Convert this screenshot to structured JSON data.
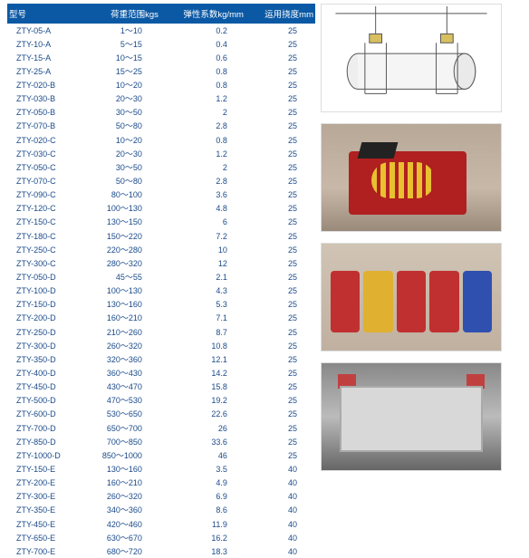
{
  "headers": [
    "型号",
    "荷重范围kgs",
    "弹性系数kg/mm",
    "运用挠度mm"
  ],
  "rows": [
    [
      "ZTY-05-A",
      "1～10",
      "0.2",
      "25"
    ],
    [
      "ZTY-10-A",
      "5～15",
      "0.4",
      "25"
    ],
    [
      "ZTY-15-A",
      "10～15",
      "0.6",
      "25"
    ],
    [
      "ZTY-25-A",
      "15～25",
      "0.8",
      "25"
    ],
    [
      "ZTY-020-B",
      "10～20",
      "0.8",
      "25"
    ],
    [
      "ZTY-030-B",
      "20～30",
      "1.2",
      "25"
    ],
    [
      "ZTY-050-B",
      "30～50",
      "2",
      "25"
    ],
    [
      "ZTY-070-B",
      "50～80",
      "2.8",
      "25"
    ],
    [
      "ZTY-020-C",
      "10～20",
      "0.8",
      "25"
    ],
    [
      "ZTY-030-C",
      "20～30",
      "1.2",
      "25"
    ],
    [
      "ZTY-050-C",
      "30～50",
      "2",
      "25"
    ],
    [
      "ZTY-070-C",
      "50～80",
      "2.8",
      "25"
    ],
    [
      "ZTY-090-C",
      "80～100",
      "3.6",
      "25"
    ],
    [
      "ZTY-120-C",
      "100～130",
      "4.8",
      "25"
    ],
    [
      "ZTY-150-C",
      "130～150",
      "6",
      "25"
    ],
    [
      "ZTY-180-C",
      "150～220",
      "7.2",
      "25"
    ],
    [
      "ZTY-250-C",
      "220～280",
      "10",
      "25"
    ],
    [
      "ZTY-300-C",
      "280～320",
      "12",
      "25"
    ],
    [
      "ZTY-050-D",
      "45～55",
      "2.1",
      "25"
    ],
    [
      "ZTY-100-D",
      "100～130",
      "4.3",
      "25"
    ],
    [
      "ZTY-150-D",
      "130～160",
      "5.3",
      "25"
    ],
    [
      "ZTY-200-D",
      "160～210",
      "7.1",
      "25"
    ],
    [
      "ZTY-250-D",
      "210～260",
      "8.7",
      "25"
    ],
    [
      "ZTY-300-D",
      "260～320",
      "10.8",
      "25"
    ],
    [
      "ZTY-350-D",
      "320～360",
      "12.1",
      "25"
    ],
    [
      "ZTY-400-D",
      "360～430",
      "14.2",
      "25"
    ],
    [
      "ZTY-450-D",
      "430～470",
      "15.8",
      "25"
    ],
    [
      "ZTY-500-D",
      "470～530",
      "19.2",
      "25"
    ],
    [
      "ZTY-600-D",
      "530～650",
      "22.6",
      "25"
    ],
    [
      "ZTY-700-D",
      "650～700",
      "26",
      "25"
    ],
    [
      "ZTY-850-D",
      "700～850",
      "33.6",
      "25"
    ],
    [
      "ZTY-1000-D",
      "850～1000",
      "46",
      "25"
    ],
    [
      "ZTY-150-E",
      "130～160",
      "3.5",
      "40"
    ],
    [
      "ZTY-200-E",
      "160～210",
      "4.9",
      "40"
    ],
    [
      "ZTY-300-E",
      "260～320",
      "6.9",
      "40"
    ],
    [
      "ZTY-350-E",
      "340～360",
      "8.6",
      "40"
    ],
    [
      "ZTY-450-E",
      "420～460",
      "11.9",
      "40"
    ],
    [
      "ZTY-650-E",
      "630～670",
      "16.2",
      "40"
    ],
    [
      "ZTY-700-E",
      "680～720",
      "18.3",
      "40"
    ]
  ],
  "table": {
    "header_bg": "#0b59a5",
    "header_color": "#ffffff",
    "cell_color": "#1a4a8a",
    "fontsize": 9
  },
  "images": {
    "diagram": {
      "type": "line-diagram",
      "desc": "hanging cylinder with spring mounts"
    },
    "photo1": {
      "desc": "red isolator with yellow spring",
      "box_color": "#b02020",
      "spring_color": "#e8c030"
    },
    "photo2": {
      "desc": "row of isolators",
      "colors": [
        "#c03030",
        "#e0b030",
        "#c03030",
        "#c03030",
        "#3050b0"
      ]
    },
    "photo3": {
      "desc": "grey plate with red mounts",
      "plate": "#d8d8d8",
      "mount": "#c04040"
    }
  }
}
